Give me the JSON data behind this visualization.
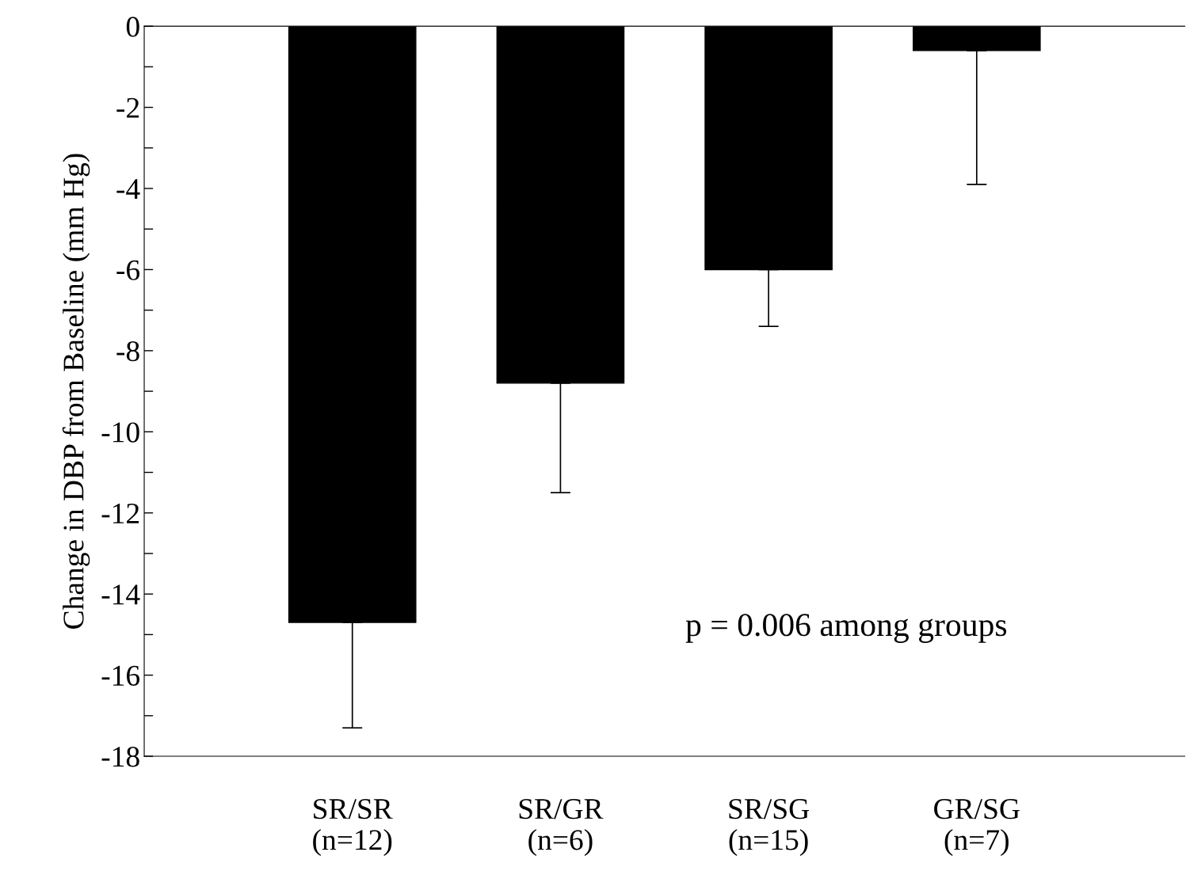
{
  "chart_data": {
    "type": "bar",
    "ylabel": "Change in DBP from Baseline (mm Hg)",
    "categories": [
      "SR/SR\n(n=12)",
      "SR/GR\n(n=6)",
      "SR/SG\n(n=15)",
      "GR/SG\n(n=7)"
    ],
    "values": [
      -14.7,
      -8.8,
      -6.0,
      -0.6
    ],
    "errors": [
      [
        -17.3,
        -14.7
      ],
      [
        -11.5,
        -8.8
      ],
      [
        -7.4,
        -6.0
      ],
      [
        -3.9,
        -0.6
      ]
    ],
    "color": "#000000",
    "ylim": [
      -18,
      0
    ],
    "yticks": [
      0,
      {
        "value": -1,
        "label": null
      },
      -2,
      {
        "value": -3,
        "label": null
      },
      -4,
      {
        "value": -5,
        "label": null
      },
      -6,
      {
        "value": -7,
        "label": null
      },
      -8,
      {
        "value": -9,
        "label": null
      },
      -10,
      {
        "value": -11,
        "label": null
      },
      -12,
      {
        "value": -13,
        "label": null
      },
      -14,
      {
        "value": -15,
        "label": null
      },
      -16,
      {
        "value": -17,
        "label": null
      },
      -18
    ],
    "grid": false,
    "legend": false,
    "annotations": [
      "p = 0.006 among groups"
    ]
  }
}
